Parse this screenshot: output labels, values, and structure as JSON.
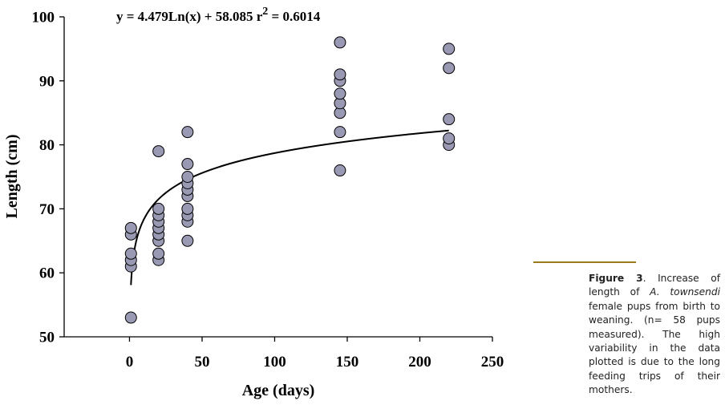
{
  "chart_data": {
    "type": "scatter",
    "equation": {
      "prefix": "y = 4.479Ln(x) + 58.085  r",
      "exponent": "2",
      "suffix": " = 0.6014"
    },
    "trendline": {
      "type": "logarithmic",
      "a": 4.479,
      "b": 58.085,
      "r2": 0.6014,
      "x_start": 1,
      "x_end": 220
    },
    "xlabel": "Age (days)",
    "ylabel": "Length (cm)",
    "xlim": [
      -45,
      250
    ],
    "ylim": [
      50,
      100
    ],
    "xticks": [
      0,
      50,
      100,
      150,
      200,
      250
    ],
    "yticks": [
      50,
      60,
      70,
      80,
      90,
      100
    ],
    "marker_color": "#9999b3",
    "series": [
      {
        "name": "female pups",
        "points": [
          [
            1,
            53
          ],
          [
            1,
            61
          ],
          [
            1,
            62
          ],
          [
            1,
            63
          ],
          [
            1,
            66
          ],
          [
            1,
            67
          ],
          [
            20,
            62
          ],
          [
            20,
            63
          ],
          [
            20,
            65
          ],
          [
            20,
            66
          ],
          [
            20,
            67
          ],
          [
            20,
            68
          ],
          [
            20,
            69
          ],
          [
            20,
            70
          ],
          [
            20,
            79
          ],
          [
            40,
            65
          ],
          [
            40,
            68
          ],
          [
            40,
            69
          ],
          [
            40,
            70
          ],
          [
            40,
            72
          ],
          [
            40,
            73
          ],
          [
            40,
            74
          ],
          [
            40,
            75
          ],
          [
            40,
            77
          ],
          [
            40,
            82
          ],
          [
            145,
            76
          ],
          [
            145,
            82
          ],
          [
            145,
            85
          ],
          [
            145,
            86.5
          ],
          [
            145,
            88
          ],
          [
            145,
            90
          ],
          [
            145,
            91
          ],
          [
            145,
            96
          ],
          [
            220,
            80
          ],
          [
            220,
            81
          ],
          [
            220,
            84
          ],
          [
            220,
            92
          ],
          [
            220,
            95
          ]
        ]
      }
    ]
  },
  "caption": {
    "label": "Figure 3",
    "text_before": ". Increase of length of ",
    "species": "A. townsendi",
    "text_after": " female pups from birth to weaning. (n= 58 pups measured). The high variability in the data plotted is due to the long feeding trips of their mothers."
  },
  "colors": {
    "rule": "#9a7a1e",
    "axis": "#000000"
  }
}
